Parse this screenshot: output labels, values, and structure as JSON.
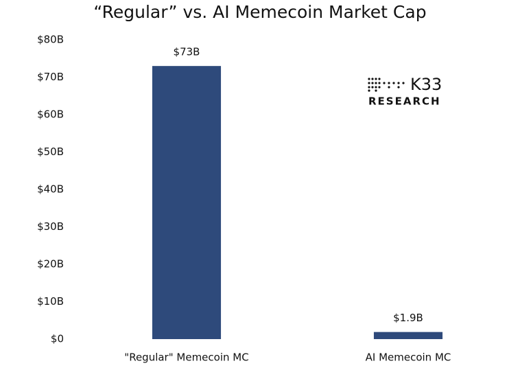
{
  "chart_data": {
    "type": "bar",
    "title": "“Regular” vs. AI Memecoin Market Cap",
    "categories": [
      "\"Regular\" Memecoin MC",
      "AI Memecoin MC"
    ],
    "values": [
      73,
      1.9
    ],
    "value_labels": [
      "$73B",
      "$1.9B"
    ],
    "color": "#2e4a7b",
    "ylim": [
      0,
      80
    ],
    "yticks": [
      {
        "value": 0,
        "label": "$0"
      },
      {
        "value": 10,
        "label": "$10B"
      },
      {
        "value": 20,
        "label": "$20B"
      },
      {
        "value": 30,
        "label": "$30B"
      },
      {
        "value": 40,
        "label": "$40B"
      },
      {
        "value": 50,
        "label": "$50B"
      },
      {
        "value": 60,
        "label": "$60B"
      },
      {
        "value": 70,
        "label": "$70B"
      },
      {
        "value": 80,
        "label": "$80B"
      }
    ],
    "grid": false
  },
  "logo": {
    "name": "K33",
    "subtitle": "RESEARCH"
  }
}
